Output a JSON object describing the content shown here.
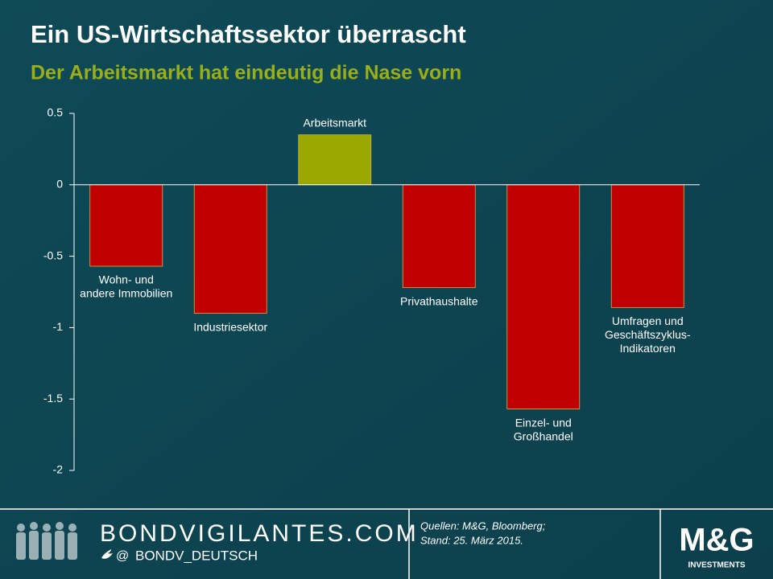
{
  "chart_data": {
    "type": "bar",
    "title": "Ein US-Wirtschaftssektor überrascht",
    "subtitle": "Der Arbeitsmarkt hat eindeutig die Nase vorn",
    "categories": [
      [
        "Wohn- und",
        "andere Immobilien"
      ],
      [
        "Industriesektor"
      ],
      [
        "Arbeitsmarkt"
      ],
      [
        "Privathaushalte"
      ],
      [
        "Einzel- und",
        "Großhandel"
      ],
      [
        "Umfragen und",
        "Geschäftszyklus-",
        "Indikatoren"
      ]
    ],
    "values": [
      -0.57,
      -0.9,
      0.35,
      -0.72,
      -1.57,
      -0.86
    ],
    "colors": {
      "negative": "#c00000",
      "positive": "#9aa800"
    },
    "ylim": [
      -2,
      0.5
    ],
    "yticks": [
      0.5,
      0,
      -0.5,
      -1,
      -1.5,
      -2
    ]
  },
  "footer": {
    "site": "BONDVIGILANTES.COM",
    "handle": "BONDV_DEUTSCH",
    "at": "@",
    "source": [
      "Quellen: M&G, Bloomberg;",
      "Stand: 25. März 2015."
    ],
    "logo": "M&G",
    "logo_sub": "INVESTMENTS"
  }
}
